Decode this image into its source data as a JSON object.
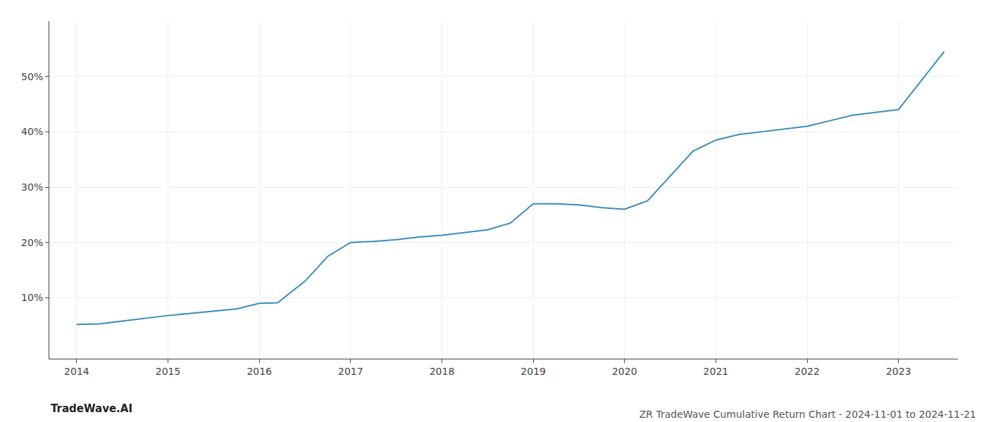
{
  "chart_data": {
    "type": "line",
    "title": "ZR TradeWave Cumulative Return Chart - 2024-11-01 to 2024-11-21",
    "annotations": [
      "TradeWave.AI"
    ],
    "x": [
      2014.0,
      2014.25,
      2014.5,
      2014.75,
      2015.0,
      2015.25,
      2015.5,
      2015.75,
      2016.0,
      2016.2,
      2016.5,
      2016.75,
      2017.0,
      2017.25,
      2017.5,
      2017.75,
      2018.0,
      2018.25,
      2018.5,
      2018.75,
      2019.0,
      2019.25,
      2019.5,
      2019.75,
      2020.0,
      2020.25,
      2020.5,
      2020.75,
      2021.0,
      2021.25,
      2021.5,
      2021.75,
      2022.0,
      2022.25,
      2022.5,
      2022.75,
      2023.0,
      2023.5
    ],
    "values": [
      5.2,
      5.3,
      5.8,
      6.3,
      6.8,
      7.2,
      7.6,
      8.0,
      9.0,
      9.1,
      13.0,
      17.5,
      20.0,
      20.2,
      20.5,
      21.0,
      21.3,
      21.8,
      22.3,
      23.5,
      27.0,
      27.0,
      26.8,
      26.3,
      26.0,
      27.5,
      32.0,
      36.5,
      38.5,
      39.5,
      40.0,
      40.5,
      41.0,
      42.0,
      43.0,
      43.5,
      44.0,
      54.5
    ],
    "color": "#3a8abf",
    "xlim": [
      2013.7,
      2023.65
    ],
    "ylim": [
      -1,
      60
    ],
    "xticks": [
      2014,
      2015,
      2016,
      2017,
      2018,
      2019,
      2020,
      2021,
      2022,
      2023
    ],
    "yticks": [
      {
        "value": 10,
        "label": "10%"
      },
      {
        "value": 20,
        "label": "20%"
      },
      {
        "value": 30,
        "label": "30%"
      },
      {
        "value": 40,
        "label": "40%"
      },
      {
        "value": 50,
        "label": "50%"
      }
    ],
    "grid": true
  }
}
